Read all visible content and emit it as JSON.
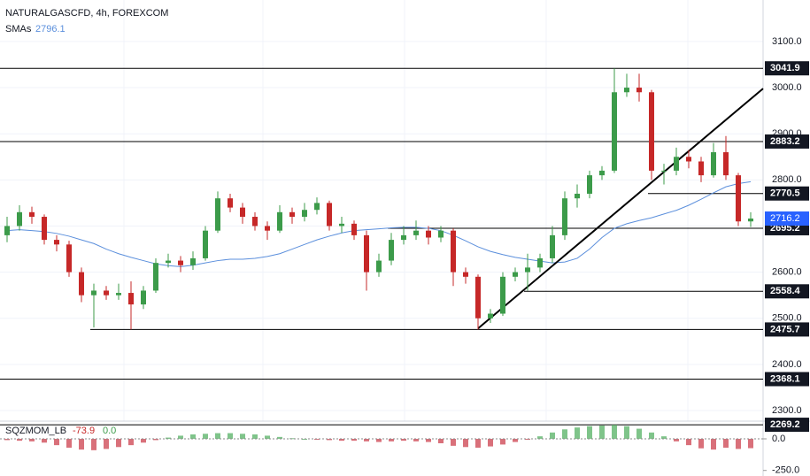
{
  "chart_data": {
    "type": "candlestick",
    "title": "NATURALGASCFD, 4h, FOREXCOM",
    "up_color": "#3c9b4a",
    "down_color": "#c62828",
    "ylim": [
      2230,
      3190
    ],
    "yticks": [
      {
        "value": 2300,
        "label": "2300.0"
      },
      {
        "value": 2400,
        "label": "2400.0"
      },
      {
        "value": 2500,
        "label": "2500.0"
      },
      {
        "value": 2600,
        "label": "2600.0"
      },
      {
        "value": 2700,
        "label": "2700.0"
      },
      {
        "value": 2800,
        "label": "2800.0"
      },
      {
        "value": 2900,
        "label": "2900.0"
      },
      {
        "value": 3000,
        "label": "3000.0"
      },
      {
        "value": 3100,
        "label": "3100.0"
      }
    ],
    "grid": true,
    "candles": [
      [
        2680,
        2720,
        2665,
        2700
      ],
      [
        2700,
        2745,
        2690,
        2730
      ],
      [
        2730,
        2742,
        2705,
        2720
      ],
      [
        2720,
        2725,
        2660,
        2670
      ],
      [
        2670,
        2680,
        2645,
        2660
      ],
      [
        2660,
        2668,
        2590,
        2600
      ],
      [
        2600,
        2610,
        2535,
        2550
      ],
      [
        2550,
        2575,
        2480,
        2560
      ],
      [
        2560,
        2570,
        2540,
        2550
      ],
      [
        2550,
        2575,
        2540,
        2555
      ],
      [
        2555,
        2580,
        2475.7,
        2530
      ],
      [
        2530,
        2570,
        2520,
        2560
      ],
      [
        2560,
        2630,
        2555,
        2620
      ],
      [
        2620,
        2640,
        2610,
        2625
      ],
      [
        2625,
        2635,
        2600,
        2615
      ],
      [
        2615,
        2645,
        2605,
        2630
      ],
      [
        2630,
        2700,
        2625,
        2690
      ],
      [
        2690,
        2775,
        2685,
        2760
      ],
      [
        2760,
        2770,
        2730,
        2740
      ],
      [
        2740,
        2750,
        2705,
        2720
      ],
      [
        2720,
        2730,
        2690,
        2700
      ],
      [
        2700,
        2710,
        2670,
        2690
      ],
      [
        2690,
        2745,
        2685,
        2730
      ],
      [
        2730,
        2740,
        2705,
        2720
      ],
      [
        2720,
        2750,
        2710,
        2735
      ],
      [
        2735,
        2762,
        2725,
        2750
      ],
      [
        2750,
        2755,
        2690,
        2700
      ],
      [
        2700,
        2720,
        2685,
        2705
      ],
      [
        2705,
        2712,
        2670,
        2680
      ],
      [
        2680,
        2690,
        2560,
        2600
      ],
      [
        2600,
        2640,
        2590,
        2625
      ],
      [
        2625,
        2685,
        2615,
        2670
      ],
      [
        2670,
        2700,
        2660,
        2680
      ],
      [
        2680,
        2712,
        2670,
        2690
      ],
      [
        2690,
        2700,
        2660,
        2675
      ],
      [
        2675,
        2700,
        2665,
        2690
      ],
      [
        2690,
        2695,
        2570,
        2600
      ],
      [
        2600,
        2610,
        2575,
        2590
      ],
      [
        2590,
        2595,
        2475.7,
        2500
      ],
      [
        2500,
        2520,
        2490,
        2510
      ],
      [
        2510,
        2600,
        2505,
        2590
      ],
      [
        2590,
        2610,
        2580,
        2600
      ],
      [
        2600,
        2640,
        2560,
        2610
      ],
      [
        2610,
        2640,
        2600,
        2630
      ],
      [
        2630,
        2700,
        2620,
        2680
      ],
      [
        2680,
        2775,
        2670,
        2760
      ],
      [
        2760,
        2790,
        2740,
        2770
      ],
      [
        2770,
        2820,
        2760,
        2810
      ],
      [
        2810,
        2830,
        2800,
        2820
      ],
      [
        2820,
        3041.9,
        2815,
        2990
      ],
      [
        2990,
        3030,
        2980,
        3000
      ],
      [
        3000,
        3030,
        2970,
        2990
      ],
      [
        2990,
        2995,
        2800,
        2820
      ],
      [
        2820,
        2835,
        2790,
        2820
      ],
      [
        2820,
        2870,
        2810,
        2850
      ],
      [
        2850,
        2865,
        2825,
        2840
      ],
      [
        2840,
        2850,
        2795,
        2810
      ],
      [
        2810,
        2880,
        2805,
        2860
      ],
      [
        2860,
        2895,
        2800,
        2810
      ],
      [
        2810,
        2815,
        2700,
        2710
      ],
      [
        2710,
        2730,
        2698,
        2716.2
      ]
    ],
    "sma": {
      "name": "SMAs",
      "color": "#5b8fdc",
      "values": [
        2690,
        2692,
        2690,
        2688,
        2684,
        2678,
        2670,
        2662,
        2650,
        2640,
        2632,
        2625,
        2618,
        2614,
        2612,
        2615,
        2620,
        2625,
        2628,
        2628,
        2630,
        2634,
        2640,
        2650,
        2660,
        2670,
        2678,
        2685,
        2690,
        2692,
        2694,
        2696,
        2697,
        2697,
        2695,
        2690,
        2680,
        2668,
        2655,
        2645,
        2638,
        2632,
        2628,
        2624,
        2620,
        2622,
        2630,
        2650,
        2675,
        2695,
        2705,
        2712,
        2718,
        2726,
        2734,
        2745,
        2758,
        2772,
        2785,
        2792,
        2796.1
      ]
    },
    "levels": [
      {
        "price": 3041.9,
        "from": 0
      },
      {
        "price": 2883.2,
        "from": 0
      },
      {
        "price": 2770.5,
        "from": 52
      },
      {
        "price": 2695.2,
        "from": 31
      },
      {
        "price": 2558.4,
        "from": 42
      },
      {
        "price": 2475.7,
        "from": 7
      },
      {
        "price": 2368.1,
        "from": 0
      },
      {
        "price": 2269.2,
        "from": 0
      }
    ],
    "trendline": {
      "from": [
        38,
        2478
      ],
      "to": [
        61,
        2998
      ]
    },
    "momentum": {
      "name": "SQZMOM_LB",
      "signal_label": "0.0",
      "positive_color": "#7fc48a",
      "negative_color": "#d9707a",
      "ylim": [
        -280,
        140
      ],
      "yticks": [
        {
          "value": 0,
          "label": "0.0"
        },
        {
          "value": -250,
          "label": "-250.0"
        }
      ],
      "values": [
        -10,
        -15,
        -20,
        -30,
        -50,
        -70,
        -85,
        -90,
        -80,
        -65,
        -50,
        -30,
        -10,
        10,
        25,
        35,
        40,
        45,
        45,
        40,
        35,
        25,
        15,
        5,
        0,
        -5,
        -10,
        -15,
        -15,
        -20,
        -25,
        -20,
        -15,
        -20,
        -25,
        -35,
        -55,
        -65,
        -70,
        -60,
        -45,
        -25,
        -5,
        20,
        50,
        75,
        90,
        100,
        105,
        110,
        100,
        80,
        50,
        20,
        -20,
        -50,
        -75,
        -85,
        -70,
        -80,
        -73.9
      ]
    }
  }
}
